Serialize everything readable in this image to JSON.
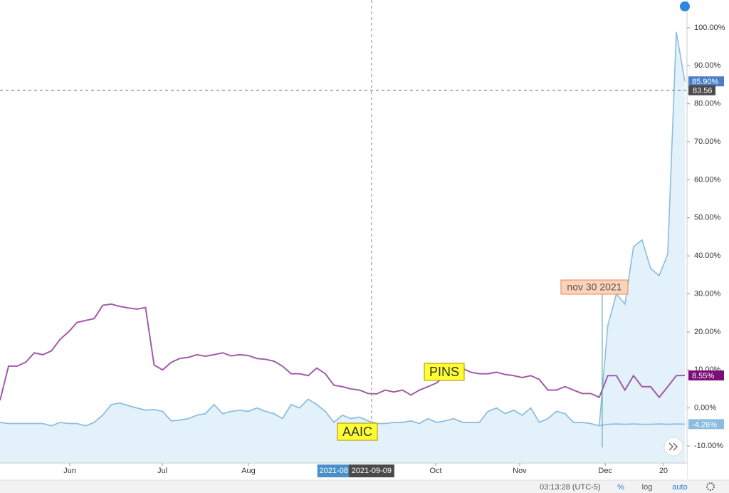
{
  "chart_data": {
    "type": "line",
    "series": [
      {
        "color": "#8bbde0",
        "fill": "#e3f1fa",
        "area": true,
        "values": [
          -3.8,
          -4.1,
          -4.1,
          -4.1,
          -4.1,
          -4.1,
          -4.7,
          -3.8,
          -4.1,
          -4.1,
          -4.7,
          -3.8,
          -1.9,
          0.9,
          1.3,
          0.6,
          0,
          -0.6,
          -0.4,
          -0.9,
          -3.4,
          -3.2,
          -2.8,
          -1.9,
          -1.5,
          0.9,
          -1.5,
          -0.9,
          -0.6,
          -0.9,
          0,
          -0.9,
          -1.5,
          -2.8,
          0.9,
          0,
          2.3,
          0.9,
          -0.9,
          -3.8,
          -1.9,
          -2.8,
          -2.4,
          -3.4,
          -4.1,
          -4.1,
          -3.8,
          -3.8,
          -3.4,
          -4.1,
          -2.8,
          -3.8,
          -3.4,
          -2.8,
          -3.8,
          -3.8,
          -3.8,
          -0.9,
          0,
          -1.5,
          -0.6,
          -1.9,
          0,
          -3.8,
          -2.8,
          -0.9,
          -1.5,
          -3.8,
          -3.8,
          -4.1,
          -4.7,
          21.7,
          30,
          27.3,
          42.4,
          44.2,
          36.7,
          34.8,
          40.5,
          98.9,
          85.9
        ],
        "last_label": "85.90%",
        "label_color": "#4a7fc8"
      },
      {
        "name": "PINS",
        "color": "#a15ca8",
        "values": [
          2,
          11,
          11,
          12,
          14.5,
          14,
          15,
          18,
          20,
          22.5,
          23,
          23.5,
          27,
          27.3,
          26.7,
          26.3,
          26,
          26.4,
          11.3,
          10,
          12,
          13,
          13.3,
          14,
          13.6,
          14,
          14.5,
          13.7,
          14,
          13.8,
          13,
          12.8,
          12.3,
          11,
          9,
          9,
          8.5,
          10.5,
          9,
          6,
          5.6,
          5,
          4.7,
          3.8,
          3.7,
          4.7,
          4.2,
          4.7,
          3.4,
          4.7,
          5.6,
          6.6,
          8.5,
          9.4,
          10.4,
          9.4,
          9,
          9,
          9.4,
          8.8,
          8.5,
          8,
          8.5,
          7.5,
          4.7,
          4.7,
          5.6,
          4.7,
          3.8,
          3.8,
          2.8,
          8.5,
          8.5,
          4.7,
          8.5,
          5.6,
          5.6,
          2.8,
          5.6,
          8.5,
          8.55
        ],
        "last_label": "8.55%",
        "label_color": "#7a0f77"
      },
      {
        "name": "AAIC",
        "color": "#8bbde0",
        "values": [
          -3.8,
          -4.1,
          -4.1,
          -4.1,
          -4.1,
          -4.1,
          -4.7,
          -3.8,
          -4.1,
          -4.1,
          -4.7,
          -3.8,
          -1.9,
          0.9,
          1.3,
          0.6,
          0,
          -0.6,
          -0.4,
          -0.9,
          -3.4,
          -3.2,
          -2.8,
          -1.9,
          -1.5,
          0.9,
          -1.5,
          -0.9,
          -0.6,
          -0.9,
          0,
          -0.9,
          -1.5,
          -2.8,
          0.9,
          0,
          2.3,
          0.9,
          -0.9,
          -3.8,
          -1.9,
          -2.8,
          -2.4,
          -3.4,
          -4.1,
          -4.1,
          -3.8,
          -3.8,
          -3.4,
          -4.1,
          -2.8,
          -3.8,
          -3.4,
          -2.8,
          -3.8,
          -3.8,
          -3.8,
          -0.9,
          0,
          -1.5,
          -0.6,
          -1.9,
          0,
          -3.8,
          -2.8,
          -0.9,
          -1.5,
          -3.8,
          -3.8,
          -4.1,
          -4.7,
          -4.3,
          -4.2,
          -4.3,
          -4.2,
          -4.3,
          -4.3,
          -4.2,
          -4.3,
          -4.2,
          -4.26
        ],
        "last_label": "-4.26%",
        "label_color": "#8bbde0"
      }
    ],
    "xlim": [
      0,
      80
    ],
    "xticks": [
      {
        "value": 8.15,
        "label": "Jun"
      },
      {
        "value": 18.96,
        "label": "Jul"
      },
      {
        "value": 29.02,
        "label": "Aug"
      },
      {
        "value": 50.9,
        "label": "Oct"
      },
      {
        "value": 60.7,
        "label": "Nov"
      },
      {
        "value": 70.7,
        "label": "Dec"
      },
      {
        "value": 77.5,
        "label": "20"
      }
    ],
    "ylim": [
      -14.5,
      107.3
    ],
    "yticks": [
      {
        "value": -10,
        "label": "-10.00%"
      },
      {
        "value": 0,
        "label": "0.00%"
      },
      {
        "value": 10,
        "label": "10.00%"
      },
      {
        "value": 20,
        "label": "20.00%"
      },
      {
        "value": 30,
        "label": "30.00%"
      },
      {
        "value": 40,
        "label": "40.00%"
      },
      {
        "value": 50,
        "label": "50.00%"
      },
      {
        "value": 60,
        "label": "60.00%"
      },
      {
        "value": 70,
        "label": "70.00%"
      },
      {
        "value": 80,
        "label": "80.00%"
      },
      {
        "value": 90,
        "label": "90.00%"
      },
      {
        "value": 100,
        "label": "100.00%"
      }
    ],
    "crosshair": {
      "x": 43.4,
      "x_label": "2021-09-09",
      "range_label": "2021-08",
      "range_x": 38.9,
      "y": 83.56
    },
    "annotation": {
      "text": "nov 30 2021",
      "x": 70.35
    },
    "status": {
      "time": "03:13:28 (UTC-5)",
      "percent": "%",
      "log": "log",
      "auto": "auto"
    }
  }
}
